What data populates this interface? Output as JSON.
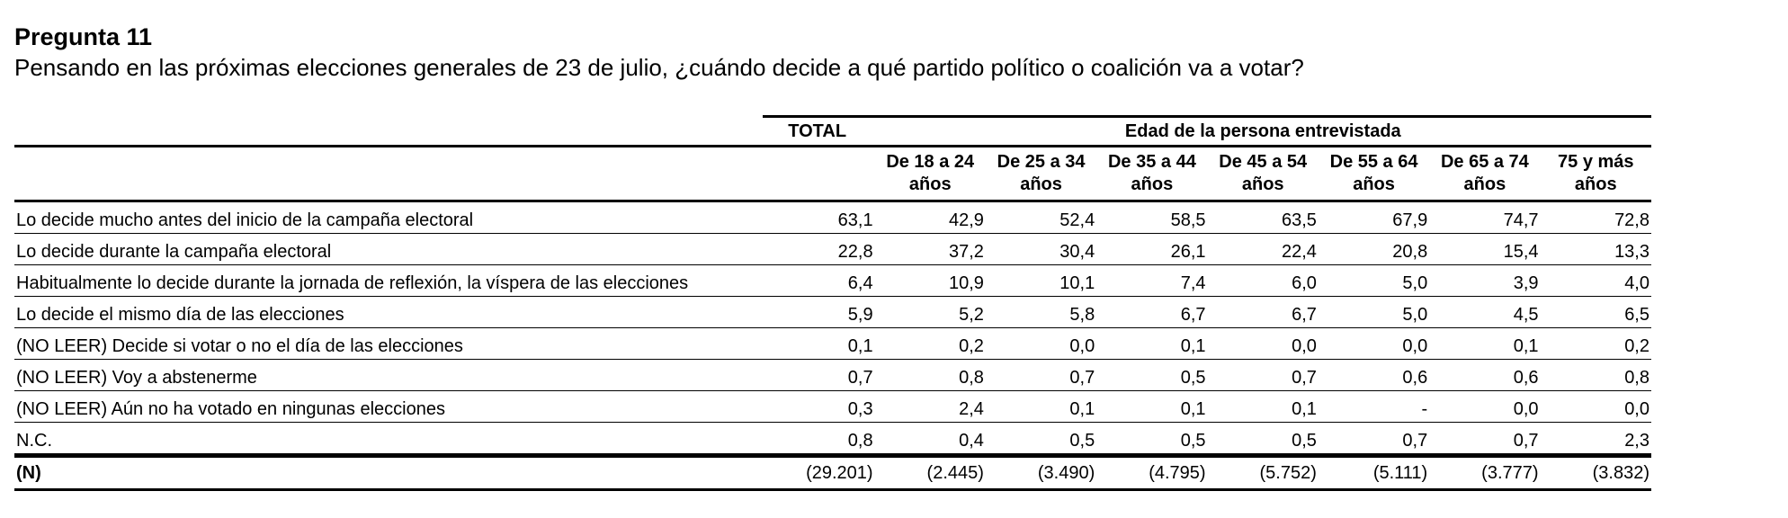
{
  "question": {
    "number": "Pregunta 11",
    "text": "Pensando en las próximas elecciones generales de 23 de julio, ¿cuándo decide a qué partido político o coalición va a votar?"
  },
  "table": {
    "total_header": "TOTAL",
    "group_header": "Edad de la persona entrevistada",
    "age_columns": [
      {
        "line1": "De 18 a 24",
        "line2": "años"
      },
      {
        "line1": "De 25 a 34",
        "line2": "años"
      },
      {
        "line1": "De 35 a 44",
        "line2": "años"
      },
      {
        "line1": "De 45 a 54",
        "line2": "años"
      },
      {
        "line1": "De 55 a 64",
        "line2": "años"
      },
      {
        "line1": "De 65 a 74",
        "line2": "años"
      },
      {
        "line1": "75 y más",
        "line2": "años"
      }
    ],
    "rows": [
      {
        "label": "Lo decide mucho antes del inicio de la campaña electoral",
        "values": [
          "63,1",
          "42,9",
          "52,4",
          "58,5",
          "63,5",
          "67,9",
          "74,7",
          "72,8"
        ]
      },
      {
        "label": "Lo decide durante la campaña electoral",
        "values": [
          "22,8",
          "37,2",
          "30,4",
          "26,1",
          "22,4",
          "20,8",
          "15,4",
          "13,3"
        ]
      },
      {
        "label": "Habitualmente lo decide durante la jornada de reflexión, la víspera de las elecciones",
        "values": [
          "6,4",
          "10,9",
          "10,1",
          "7,4",
          "6,0",
          "5,0",
          "3,9",
          "4,0"
        ]
      },
      {
        "label": "Lo decide el mismo día de las elecciones",
        "values": [
          "5,9",
          "5,2",
          "5,8",
          "6,7",
          "6,7",
          "5,0",
          "4,5",
          "6,5"
        ]
      },
      {
        "label": "(NO LEER) Decide si votar o no el día de las elecciones",
        "values": [
          "0,1",
          "0,2",
          "0,0",
          "0,1",
          "0,0",
          "0,0",
          "0,1",
          "0,2"
        ]
      },
      {
        "label": "(NO LEER) Voy a abstenerme",
        "values": [
          "0,7",
          "0,8",
          "0,7",
          "0,5",
          "0,7",
          "0,6",
          "0,6",
          "0,8"
        ]
      },
      {
        "label": "(NO LEER) Aún no ha votado en ningunas elecciones",
        "values": [
          "0,3",
          "2,4",
          "0,1",
          "0,1",
          "0,1",
          "-",
          "0,0",
          "0,0"
        ]
      },
      {
        "label": "N.C.",
        "values": [
          "0,8",
          "0,4",
          "0,5",
          "0,5",
          "0,5",
          "0,7",
          "0,7",
          "2,3"
        ]
      }
    ],
    "n_row": {
      "label": "(N)",
      "values": [
        "(29.201)",
        "(2.445)",
        "(3.490)",
        "(4.795)",
        "(5.752)",
        "(5.111)",
        "(3.777)",
        "(3.832)"
      ]
    }
  }
}
